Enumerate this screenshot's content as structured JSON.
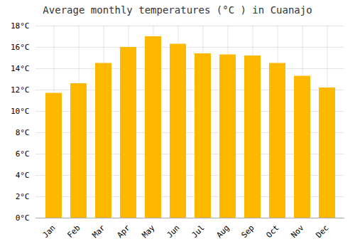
{
  "chart_data": {
    "type": "bar",
    "title": "Average monthly temperatures (°C ) in Cuanajo",
    "categories": [
      "Jan",
      "Feb",
      "Mar",
      "Apr",
      "May",
      "Jun",
      "Jul",
      "Aug",
      "Sep",
      "Oct",
      "Nov",
      "Dec"
    ],
    "values": [
      11.7,
      12.6,
      14.5,
      16.0,
      17.0,
      16.3,
      15.4,
      15.3,
      15.2,
      14.5,
      13.3,
      12.2
    ],
    "color": "#FFB800",
    "ylim": [
      0,
      18
    ],
    "yticks": [
      {
        "value": 0,
        "label": "0°C"
      },
      {
        "value": 2,
        "label": "2°C"
      },
      {
        "value": 4,
        "label": "4°C"
      },
      {
        "value": 6,
        "label": "6°C"
      },
      {
        "value": 8,
        "label": "8°C"
      },
      {
        "value": 10,
        "label": "10°C"
      },
      {
        "value": 12,
        "label": "12°C"
      },
      {
        "value": 14,
        "label": "14°C"
      },
      {
        "value": 16,
        "label": "16°C"
      },
      {
        "value": 18,
        "label": "18°C"
      }
    ],
    "grid": true
  }
}
